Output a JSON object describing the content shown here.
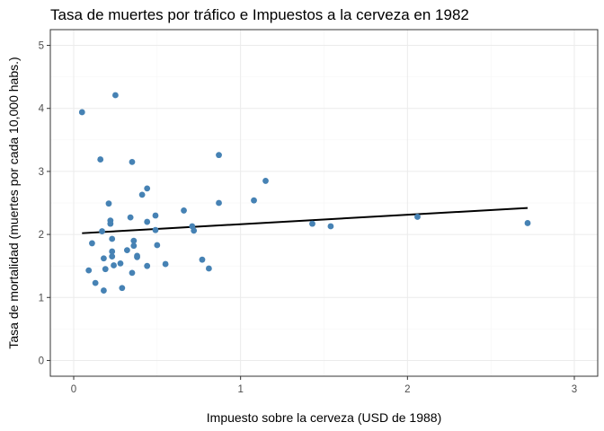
{
  "chart_data": {
    "type": "scatter",
    "title": "Tasa de muertes por tráfico e Impuestos a la cerveza en 1982",
    "xlabel": "Impuesto sobre la cerveza (USD de 1988)",
    "ylabel": "Tasa de mortalidad (muertes por cada 10,000 habs.)",
    "xlim": [
      -0.14,
      3.14
    ],
    "ylim": [
      -0.25,
      5.25
    ],
    "xticks": [
      0,
      1,
      2,
      3
    ],
    "yticks": [
      0,
      1,
      2,
      3,
      4,
      5
    ],
    "grid": true,
    "point_color": "#4682b4",
    "series": [
      {
        "points": [
          [
            0.05,
            3.94
          ],
          [
            0.09,
            1.43
          ],
          [
            0.11,
            1.86
          ],
          [
            0.13,
            1.23
          ],
          [
            0.16,
            3.19
          ],
          [
            0.17,
            2.05
          ],
          [
            0.18,
            1.62
          ],
          [
            0.18,
            1.11
          ],
          [
            0.19,
            1.45
          ],
          [
            0.21,
            2.49
          ],
          [
            0.22,
            2.22
          ],
          [
            0.22,
            2.17
          ],
          [
            0.23,
            1.93
          ],
          [
            0.23,
            1.73
          ],
          [
            0.23,
            1.65
          ],
          [
            0.24,
            1.51
          ],
          [
            0.25,
            4.21
          ],
          [
            0.28,
            1.54
          ],
          [
            0.29,
            1.15
          ],
          [
            0.32,
            1.75
          ],
          [
            0.34,
            2.27
          ],
          [
            0.35,
            1.39
          ],
          [
            0.35,
            3.15
          ],
          [
            0.36,
            1.9
          ],
          [
            0.36,
            1.82
          ],
          [
            0.38,
            1.66
          ],
          [
            0.38,
            1.64
          ],
          [
            0.41,
            2.63
          ],
          [
            0.44,
            2.73
          ],
          [
            0.44,
            2.2
          ],
          [
            0.44,
            1.5
          ],
          [
            0.49,
            2.3
          ],
          [
            0.49,
            2.07
          ],
          [
            0.5,
            1.83
          ],
          [
            0.55,
            1.53
          ],
          [
            0.66,
            2.38
          ],
          [
            0.71,
            2.13
          ],
          [
            0.72,
            2.06
          ],
          [
            0.77,
            1.6
          ],
          [
            0.81,
            1.46
          ],
          [
            0.87,
            3.26
          ],
          [
            0.87,
            2.5
          ],
          [
            1.08,
            2.54
          ],
          [
            1.15,
            2.85
          ],
          [
            1.43,
            2.17
          ],
          [
            1.54,
            2.13
          ],
          [
            2.06,
            2.28
          ],
          [
            2.72,
            2.18
          ]
        ]
      }
    ],
    "fit_line": {
      "type": "linear",
      "color": "#000000",
      "x": [
        0.05,
        2.72
      ],
      "y": [
        2.02,
        2.42
      ]
    }
  }
}
